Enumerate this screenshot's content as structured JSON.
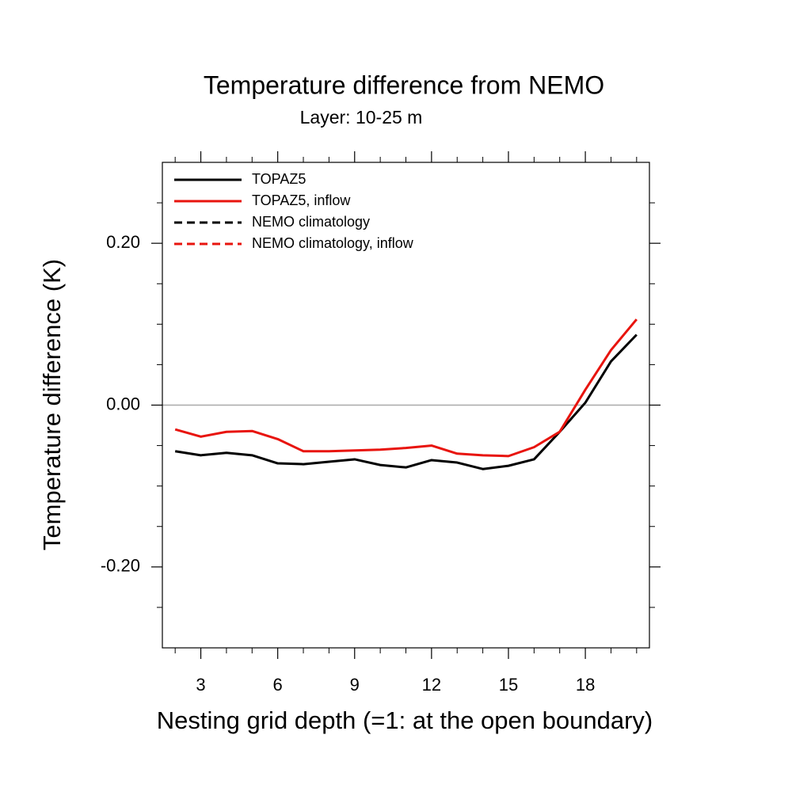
{
  "chart_data": {
    "type": "line",
    "title": "Temperature difference from NEMO",
    "subtitle": "Layer: 10-25 m",
    "xlabel": "Nesting grid depth (=1: at the open boundary)",
    "ylabel": "Temperature difference (K)",
    "x": [
      2,
      3,
      4,
      5,
      6,
      7,
      8,
      9,
      10,
      11,
      12,
      13,
      14,
      15,
      16,
      17,
      18,
      19,
      20
    ],
    "series": [
      {
        "name": "TOPAZ5",
        "color": "#000000",
        "dash": false,
        "values": [
          -0.057,
          -0.062,
          -0.059,
          -0.062,
          -0.072,
          -0.073,
          -0.07,
          -0.067,
          -0.074,
          -0.077,
          -0.068,
          -0.071,
          -0.079,
          -0.075,
          -0.067,
          -0.033,
          0.003,
          0.054,
          0.087
        ]
      },
      {
        "name": "TOPAZ5, inflow",
        "color": "#e8140e",
        "dash": false,
        "values": [
          -0.03,
          -0.039,
          -0.033,
          -0.032,
          -0.042,
          -0.057,
          -0.057,
          -0.056,
          -0.055,
          -0.053,
          -0.05,
          -0.06,
          -0.062,
          -0.063,
          -0.052,
          -0.033,
          0.019,
          0.068,
          0.106
        ]
      },
      {
        "name": "NEMO climatology",
        "color": "#000000",
        "dash": true,
        "values": [
          null,
          null,
          null,
          null,
          null,
          null,
          null,
          null,
          null,
          null,
          null,
          null,
          null,
          null,
          null,
          null,
          null,
          null,
          null
        ]
      },
      {
        "name": "NEMO climatology, inflow",
        "color": "#e8140e",
        "dash": true,
        "values": [
          null,
          null,
          null,
          null,
          null,
          null,
          null,
          null,
          null,
          null,
          null,
          null,
          null,
          null,
          null,
          null,
          null,
          null,
          null
        ]
      }
    ],
    "xlim": [
      1.5,
      20.5
    ],
    "xticks": [
      3,
      6,
      9,
      12,
      15,
      18
    ],
    "xminorticks": [
      2,
      4,
      5,
      7,
      8,
      10,
      11,
      13,
      14,
      16,
      17,
      19,
      20
    ],
    "ylim": [
      -0.3,
      0.3
    ],
    "yticks": [
      {
        "value": -0.2,
        "label": "-0.20"
      },
      {
        "value": 0,
        "label": "0.00"
      },
      {
        "value": 0.2,
        "label": "0.20"
      }
    ],
    "yminorticks": [
      -0.25,
      -0.15,
      -0.1,
      -0.05,
      0.05,
      0.1,
      0.15,
      0.25
    ],
    "zero_line": true,
    "legend": "top-left"
  }
}
